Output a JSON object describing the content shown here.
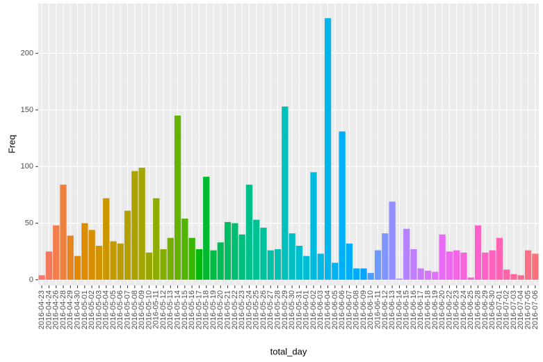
{
  "chart_data": {
    "type": "bar",
    "xlabel": "total_day",
    "ylabel": "Freq",
    "color_scale": "hue",
    "categories": [
      "2016-04-23",
      "2016-04-24",
      "2016-04-26",
      "2016-04-28",
      "2016-04-29",
      "2016-04-30",
      "2016-05-01",
      "2016-05-02",
      "2016-05-03",
      "2016-05-04",
      "2016-05-05",
      "2016-05-06",
      "2016-05-07",
      "2016-05-08",
      "2016-05-09",
      "2016-05-10",
      "2016-05-11",
      "2016-05-12",
      "2016-05-13",
      "2016-05-14",
      "2016-05-15",
      "2016-05-16",
      "2016-05-17",
      "2016-05-18",
      "2016-05-19",
      "2016-05-20",
      "2016-05-21",
      "2016-05-22",
      "2016-05-23",
      "2016-05-24",
      "2016-05-25",
      "2016-05-26",
      "2016-05-27",
      "2016-05-28",
      "2016-05-29",
      "2016-05-30",
      "2016-05-31",
      "2016-06-01",
      "2016-06-02",
      "2016-06-03",
      "2016-06-04",
      "2016-06-05",
      "2016-06-06",
      "2016-06-07",
      "2016-06-08",
      "2016-06-09",
      "2016-06-10",
      "2016-06-11",
      "2016-06-12",
      "2016-06-13",
      "2016-06-14",
      "2016-06-15",
      "2016-06-16",
      "2016-06-17",
      "2016-06-18",
      "2016-06-19",
      "2016-06-20",
      "2016-06-22",
      "2016-06-23",
      "2016-06-24",
      "2016-06-25",
      "2016-06-28",
      "2016-06-29",
      "2016-06-30",
      "2016-07-01",
      "2016-07-02",
      "2016-07-03",
      "2016-07-04",
      "2016-07-05",
      "2016-07-06"
    ],
    "values": [
      4,
      25,
      48,
      84,
      39,
      21,
      50,
      44,
      30,
      72,
      34,
      32,
      61,
      96,
      99,
      24,
      72,
      27,
      37,
      145,
      54,
      37,
      27,
      91,
      26,
      33,
      51,
      50,
      40,
      84,
      53,
      46,
      26,
      27,
      153,
      41,
      30,
      21,
      95,
      23,
      231,
      15,
      131,
      32,
      10,
      10,
      6,
      26,
      41,
      69,
      1,
      45,
      27,
      10,
      8,
      7,
      40,
      25,
      26,
      24,
      2,
      48,
      24,
      26,
      37,
      9,
      5,
      4,
      26,
      23
    ],
    "ylim": [
      -5,
      244
    ],
    "yticks": [
      0,
      50,
      100,
      150,
      200
    ],
    "grid": true
  }
}
